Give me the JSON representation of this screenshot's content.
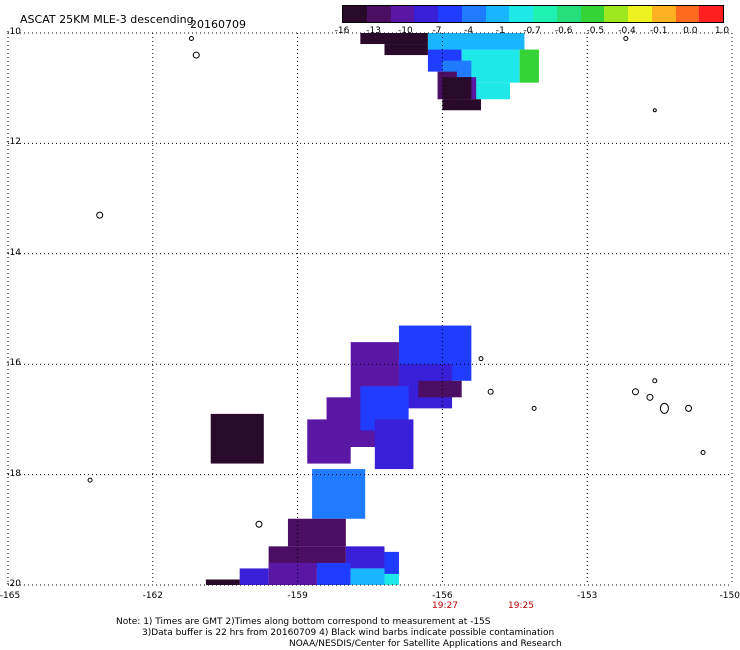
{
  "header": {
    "title": "ASCAT 25KM MLE-3 descending",
    "date": "20160709"
  },
  "colorbar": {
    "labels": [
      "-16",
      "-13",
      "-10",
      "-7",
      "-4",
      "-1",
      "-0.7",
      "-0.6",
      "-0.5",
      "-0.4",
      "-0.1",
      "0.0",
      "1.0"
    ],
    "colors": [
      "#2a0a2a",
      "#4b0e62",
      "#5a17a3",
      "#3a1fd9",
      "#1f3cff",
      "#1f7bff",
      "#18b6ff",
      "#1ee8e8",
      "#1ff2b0",
      "#25e07a",
      "#35d335",
      "#9ee81f",
      "#eef21f",
      "#ffb21f",
      "#ff6a1f",
      "#ff1f1f"
    ]
  },
  "map": {
    "lat_labels": [
      "-10",
      "-12",
      "-14",
      "-16",
      "-18",
      "-20"
    ],
    "lon_labels": [
      "-165",
      "-162",
      "-159",
      "-156",
      "-153",
      "-150"
    ],
    "time_labels": [
      "19:27",
      "19:25"
    ],
    "lat_range": [
      -20,
      -10
    ],
    "lon_range": [
      -165,
      -150
    ]
  },
  "notes": {
    "line1": "Note: 1) Times are GMT 2)Times along bottom correspond to measurement at -15S",
    "line2": "3)Data buffer is 22 hrs from 20160709 4) Black wind barbs indicate possible contamination",
    "line3": "NOAA/NESDIS/Center for Satellite Applications and Research"
  }
}
